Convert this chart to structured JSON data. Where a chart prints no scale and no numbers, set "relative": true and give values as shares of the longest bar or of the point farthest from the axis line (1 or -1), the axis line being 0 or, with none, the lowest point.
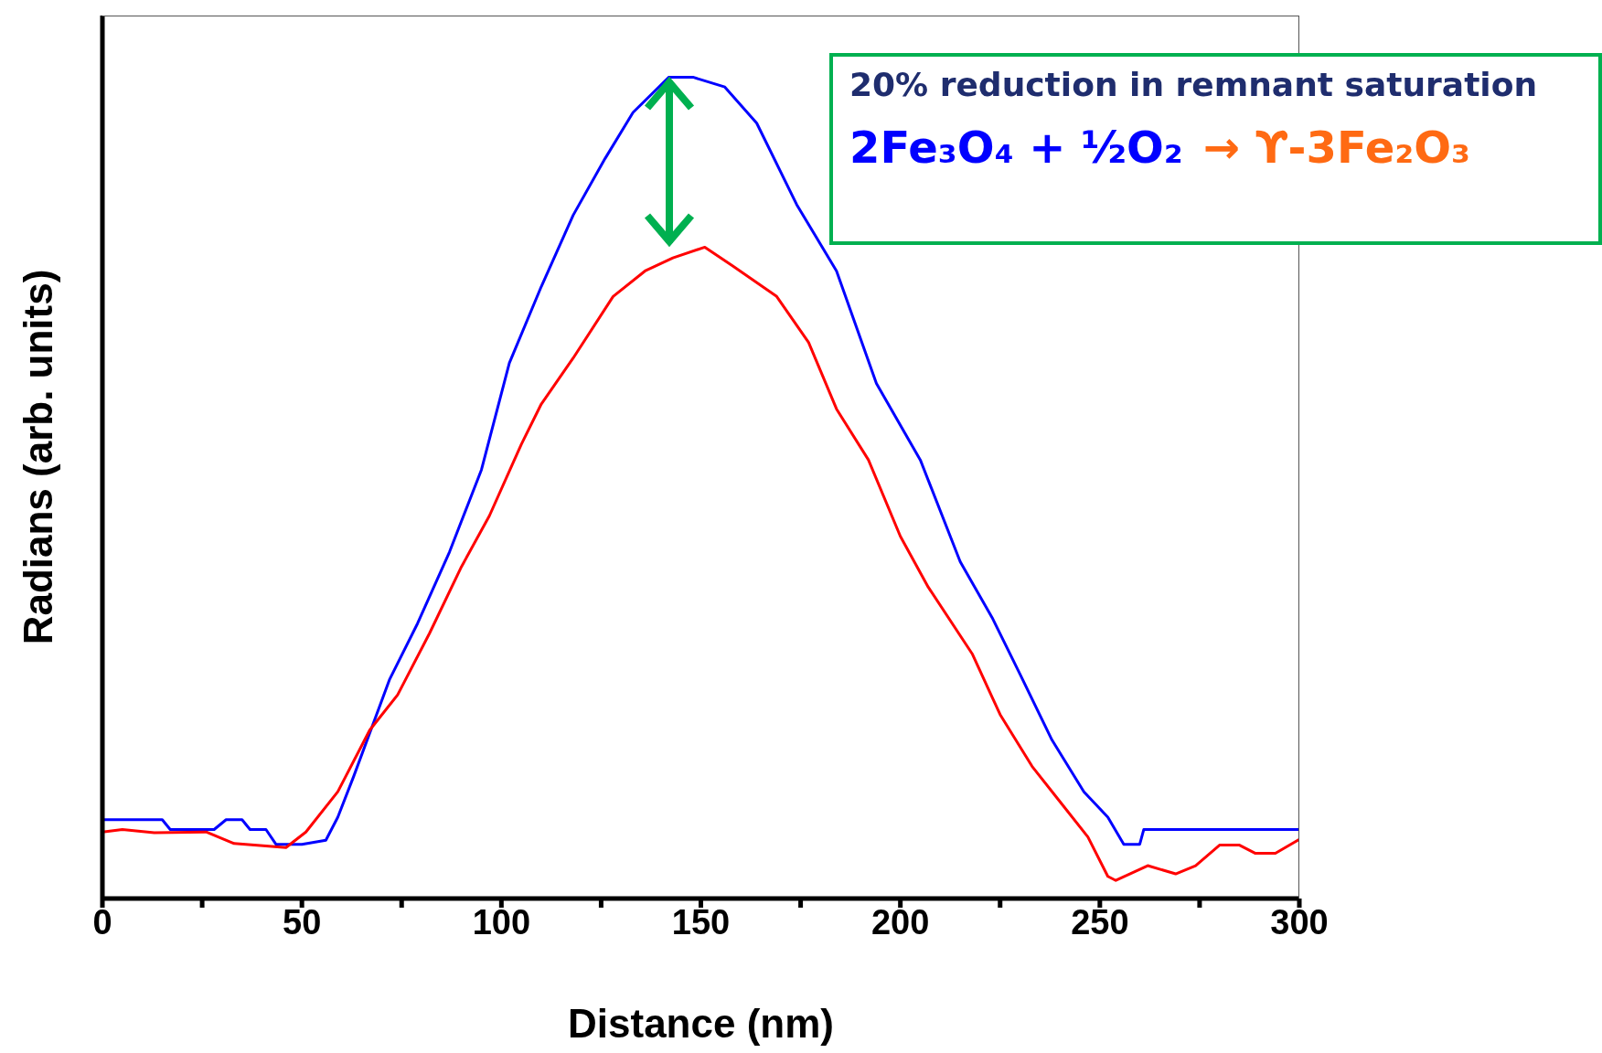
{
  "chart_data": {
    "type": "line",
    "relative": true,
    "xlabel": "Distance (nm)",
    "ylabel": "Radians (arb. units)",
    "xlim": [
      0,
      300
    ],
    "xticks": [
      0,
      {
        "value": 25,
        "label": null
      },
      50,
      {
        "value": 75,
        "label": null
      },
      100,
      {
        "value": 125,
        "label": null
      },
      150,
      {
        "value": 175,
        "label": null
      },
      200,
      {
        "value": 225,
        "label": null
      },
      250,
      {
        "value": 275,
        "label": null
      },
      300
    ],
    "grid": false,
    "legend": false,
    "marker": "none",
    "line_style": "solid",
    "annotations": [
      "20% reduction in remnant saturation",
      "2Fe₃O₄ + ½O₂",
      "→ ϒ-3Fe₂O₃"
    ],
    "series": [
      {
        "color": "#0000ff",
        "x": [
          0,
          15,
          17,
          28,
          31,
          35,
          37,
          41,
          43.5,
          50,
          56,
          59,
          63,
          72,
          79,
          87,
          95,
          102,
          110,
          118,
          126,
          133,
          142,
          148,
          156,
          164,
          174,
          184,
          194,
          205,
          215,
          223,
          230,
          238,
          246,
          252,
          256,
          260,
          261,
          300
        ],
        "values": [
          0.096,
          0.096,
          0.084,
          0.084,
          0.096,
          0.096,
          0.084,
          0.084,
          0.066,
          0.066,
          0.071,
          0.099,
          0.149,
          0.267,
          0.335,
          0.422,
          0.522,
          0.652,
          0.745,
          0.832,
          0.901,
          0.957,
          1,
          1,
          0.988,
          0.944,
          0.845,
          0.764,
          0.627,
          0.534,
          0.41,
          0.342,
          0.273,
          0.193,
          0.13,
          0.099,
          0.066,
          0.066,
          0.084,
          0.084
        ]
      },
      {
        "color": "#ff0000",
        "x": [
          0,
          5,
          13,
          26,
          33,
          41,
          46,
          51,
          59,
          67,
          74,
          82,
          90,
          97,
          105,
          110,
          118,
          128,
          136,
          143,
          151,
          158,
          169,
          177,
          184,
          192,
          200,
          207,
          218,
          225,
          233,
          240,
          247,
          252,
          254,
          258,
          262,
          269,
          274,
          280,
          285,
          289,
          294,
          300
        ],
        "values": [
          0.081,
          0.084,
          0.08,
          0.081,
          0.067,
          0.064,
          0.062,
          0.081,
          0.13,
          0.205,
          0.248,
          0.323,
          0.404,
          0.466,
          0.553,
          0.602,
          0.658,
          0.733,
          0.764,
          0.78,
          0.793,
          0.77,
          0.733,
          0.677,
          0.596,
          0.534,
          0.441,
          0.379,
          0.298,
          0.224,
          0.161,
          0.118,
          0.075,
          0.027,
          0.022,
          0.031,
          0.04,
          0.03,
          0.04,
          0.065,
          0.065,
          0.055,
          0.055,
          0.072
        ]
      }
    ]
  }
}
